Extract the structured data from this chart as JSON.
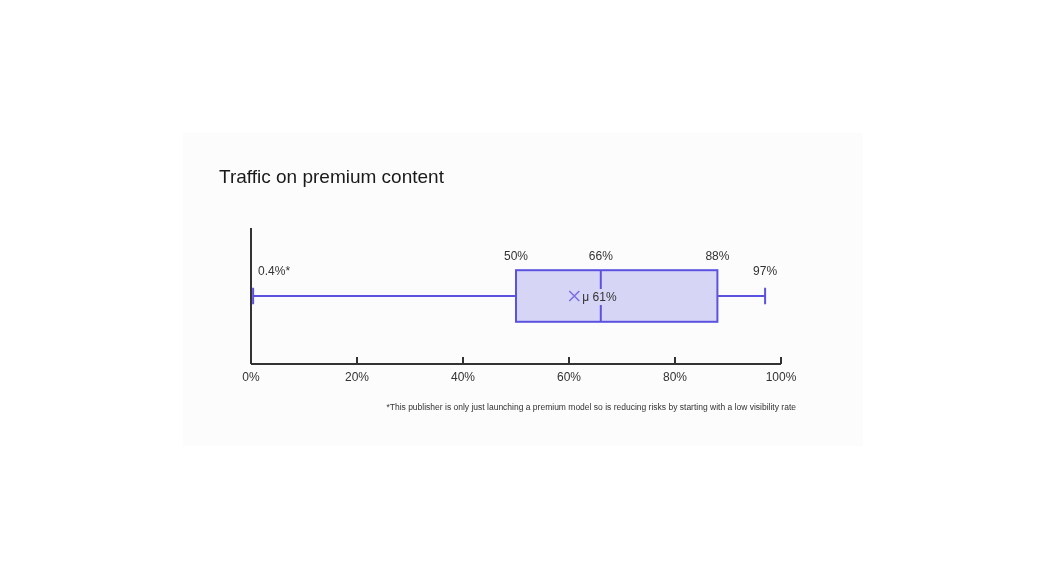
{
  "chart_data": {
    "type": "box",
    "title": "Traffic on premium content",
    "orientation": "horizontal",
    "categories": [
      null
    ],
    "color": "#5b52e0",
    "boxes": [
      {
        "low": 0.4,
        "q1": 50,
        "median": 66,
        "q3": 88,
        "high": 97,
        "mean": 61
      }
    ],
    "xlim": [
      0,
      100
    ],
    "xticks": [
      {
        "value": 0,
        "label": "0%"
      },
      {
        "value": 20,
        "label": "20%"
      },
      {
        "value": 40,
        "label": "40%"
      },
      {
        "value": 60,
        "label": "60%"
      },
      {
        "value": 80,
        "label": "80%"
      },
      {
        "value": 100,
        "label": "100%"
      }
    ],
    "grid": false,
    "annotations": [
      "0.4%*",
      "50%",
      "66%",
      "88%",
      "97%",
      "μ 61%",
      "*This publisher is only just launching a premium model so is reducing risks by starting with a low visibility rate"
    ]
  }
}
